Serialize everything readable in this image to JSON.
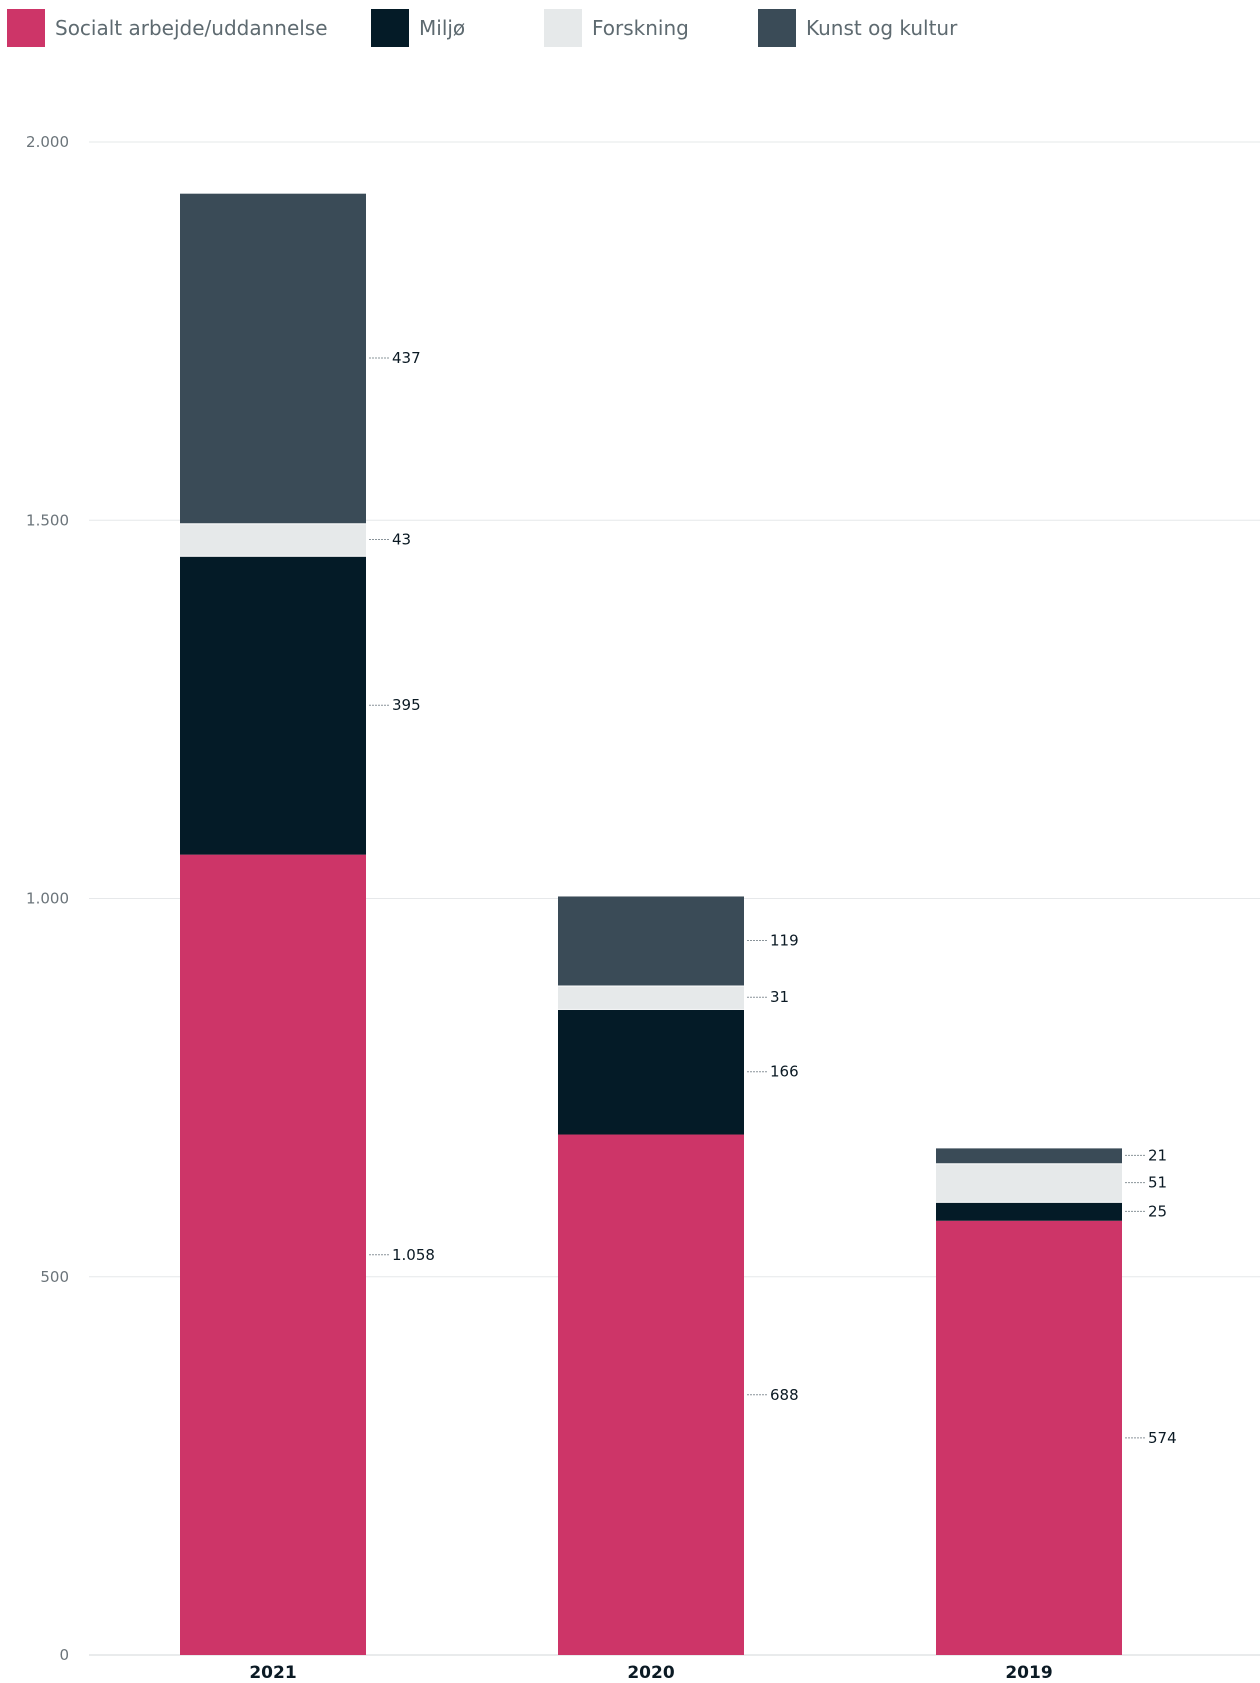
{
  "legend": [
    {
      "label": "Socialt arbejde/uddannelse",
      "color": "#cd3568"
    },
    {
      "label": "Miljø",
      "color": "#041b27"
    },
    {
      "label": "Forskning",
      "color": "#e6e9ea"
    },
    {
      "label": "Kunst og kultur",
      "color": "#3a4b57"
    }
  ],
  "chart_data": {
    "type": "bar",
    "stacked": true,
    "categories": [
      "2021",
      "2020",
      "2019"
    ],
    "series": [
      {
        "name": "Socialt arbejde/uddannelse",
        "color": "#cd3568",
        "values": [
          1058,
          688,
          574
        ],
        "labels": [
          "1.058",
          "688",
          "574"
        ]
      },
      {
        "name": "Miljø",
        "color": "#041b27",
        "values": [
          395,
          166,
          25
        ],
        "labels": [
          "395",
          "166",
          "25"
        ]
      },
      {
        "name": "Forskning",
        "color": "#e6e9ea",
        "values": [
          43,
          31,
          51
        ],
        "labels": [
          "43",
          "31",
          "51"
        ]
      },
      {
        "name": "Kunst og kultur",
        "color": "#3a4b57",
        "values": [
          437,
          119,
          21
        ],
        "labels": [
          "437",
          "119",
          "21"
        ]
      }
    ],
    "ylim": [
      0,
      2000
    ],
    "yticks": [
      0,
      500,
      1000,
      1500,
      2000
    ],
    "ytick_labels": [
      "0",
      "500",
      "1.000",
      "1.500",
      "2.000"
    ],
    "grid": true,
    "legend_position": "top-left"
  }
}
